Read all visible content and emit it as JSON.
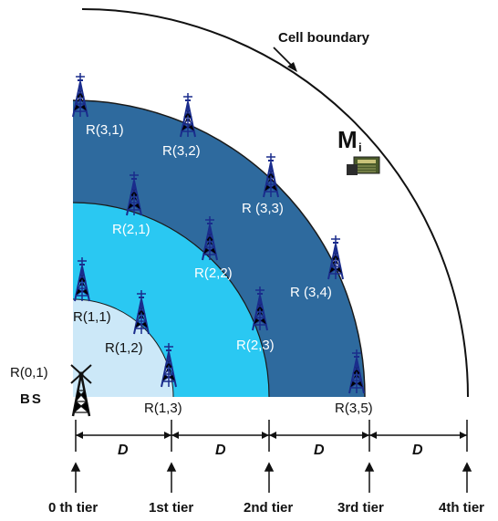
{
  "title_label": "Cell boundary",
  "mobile_label": "M",
  "mobile_sub": "i",
  "bs_label": "BS",
  "relays": [
    {
      "id": "r01",
      "label": "R(0,1)"
    },
    {
      "id": "r11",
      "label": "R(1,1)"
    },
    {
      "id": "r12",
      "label": "R(1,2)"
    },
    {
      "id": "r13",
      "label": "R(1,3)"
    },
    {
      "id": "r21",
      "label": "R(2,1)"
    },
    {
      "id": "r22",
      "label": "R(2,2)"
    },
    {
      "id": "r23",
      "label": "R(2,3)"
    },
    {
      "id": "r31",
      "label": "R(3,1)"
    },
    {
      "id": "r32",
      "label": "R(3,2)"
    },
    {
      "id": "r33",
      "label": "R (3,3)"
    },
    {
      "id": "r34",
      "label": "R (3,4)"
    },
    {
      "id": "r35",
      "label": "R(3,5)"
    }
  ],
  "spacing_label": "D",
  "tiers": [
    "0 th tier",
    "1st tier",
    "2nd tier",
    "3rd tier",
    "4th tier"
  ],
  "colors": {
    "tier1": "#cce8f8",
    "tier2": "#2ac8f2",
    "tier3": "#2e6a9e",
    "tower": "#1a2c8c"
  }
}
